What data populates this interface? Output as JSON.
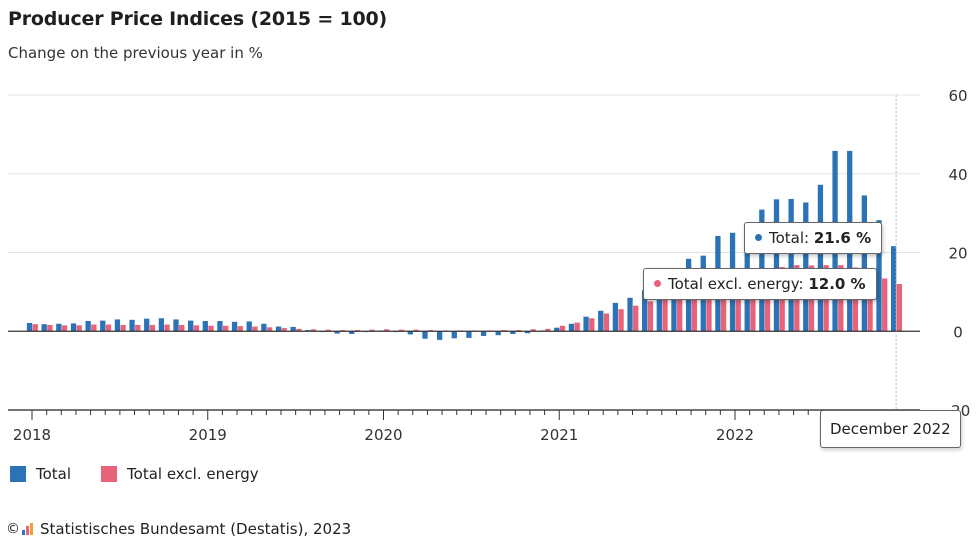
{
  "title": "Producer Price Indices (2015 = 100)",
  "subtitle": "Change on the previous year in %",
  "colors": {
    "total": "#2b73b6",
    "excl": "#e8637a",
    "grid": "#e3e3e3",
    "axis": "#222222"
  },
  "legend": [
    {
      "label": "Total",
      "color": "#2b73b6"
    },
    {
      "label": "Total excl. energy",
      "color": "#e8637a"
    }
  ],
  "tooltip": {
    "total_label": "Total: ",
    "total_value": "21.6 %",
    "excl_label": "Total excl. energy: ",
    "excl_value": "12.0 %",
    "date": "December 2022"
  },
  "source": "Statistisches Bundesamt (Destatis), 2023",
  "chart_data": {
    "type": "bar",
    "title": "Producer Price Indices (2015 = 100)",
    "subtitle": "Change on the previous year in %",
    "ylim": [
      -20,
      60
    ],
    "yticks": [
      -20,
      0,
      20,
      40,
      60
    ],
    "xlabels": [
      "2018",
      "2019",
      "2020",
      "2021",
      "2022"
    ],
    "categories": [
      "Jan 2018",
      "Feb 2018",
      "Mar 2018",
      "Apr 2018",
      "May 2018",
      "Jun 2018",
      "Jul 2018",
      "Aug 2018",
      "Sep 2018",
      "Oct 2018",
      "Nov 2018",
      "Dec 2018",
      "Jan 2019",
      "Feb 2019",
      "Mar 2019",
      "Apr 2019",
      "May 2019",
      "Jun 2019",
      "Jul 2019",
      "Aug 2019",
      "Sep 2019",
      "Oct 2019",
      "Nov 2019",
      "Dec 2019",
      "Jan 2020",
      "Feb 2020",
      "Mar 2020",
      "Apr 2020",
      "May 2020",
      "Jun 2020",
      "Jul 2020",
      "Aug 2020",
      "Sep 2020",
      "Oct 2020",
      "Nov 2020",
      "Dec 2020",
      "Jan 2021",
      "Feb 2021",
      "Mar 2021",
      "Apr 2021",
      "May 2021",
      "Jun 2021",
      "Jul 2021",
      "Aug 2021",
      "Sep 2021",
      "Oct 2021",
      "Nov 2021",
      "Dec 2021",
      "Jan 2022",
      "Feb 2022",
      "Mar 2022",
      "Apr 2022",
      "May 2022",
      "Jun 2022",
      "Jul 2022",
      "Aug 2022",
      "Sep 2022",
      "Oct 2022",
      "Nov 2022",
      "Dec 2022"
    ],
    "series": [
      {
        "name": "Total",
        "values": [
          2.1,
          1.8,
          1.9,
          2.0,
          2.6,
          2.7,
          3.0,
          2.9,
          3.2,
          3.3,
          3.0,
          2.7,
          2.6,
          2.6,
          2.4,
          2.5,
          1.9,
          1.2,
          1.1,
          0.3,
          -0.1,
          -0.6,
          -0.7,
          -0.2,
          0.2,
          -0.1,
          -0.8,
          -1.9,
          -2.2,
          -1.8,
          -1.7,
          -1.2,
          -1.0,
          -0.7,
          -0.5,
          0.2,
          0.9,
          1.9,
          3.7,
          5.2,
          7.2,
          8.5,
          10.4,
          12.0,
          14.2,
          18.4,
          19.2,
          24.2,
          25.0,
          25.9,
          30.9,
          33.5,
          33.6,
          32.7,
          37.2,
          45.8,
          45.8,
          34.5,
          28.2,
          21.6
        ]
      },
      {
        "name": "Total excl. energy",
        "values": [
          1.8,
          1.6,
          1.5,
          1.5,
          1.7,
          1.7,
          1.6,
          1.6,
          1.6,
          1.7,
          1.6,
          1.5,
          1.4,
          1.4,
          1.3,
          1.2,
          1.0,
          0.8,
          0.6,
          0.5,
          0.4,
          0.3,
          0.3,
          0.4,
          0.5,
          0.4,
          0.4,
          0.3,
          0.2,
          0.2,
          0.2,
          0.2,
          0.3,
          0.3,
          0.5,
          0.6,
          1.4,
          2.2,
          3.3,
          4.5,
          5.6,
          6.5,
          7.6,
          8.6,
          9.6,
          10.5,
          11.5,
          12.4,
          13.4,
          14.2,
          15.6,
          16.3,
          16.8,
          16.7,
          16.8,
          16.8,
          16.2,
          14.9,
          13.4,
          12.0
        ]
      }
    ]
  }
}
